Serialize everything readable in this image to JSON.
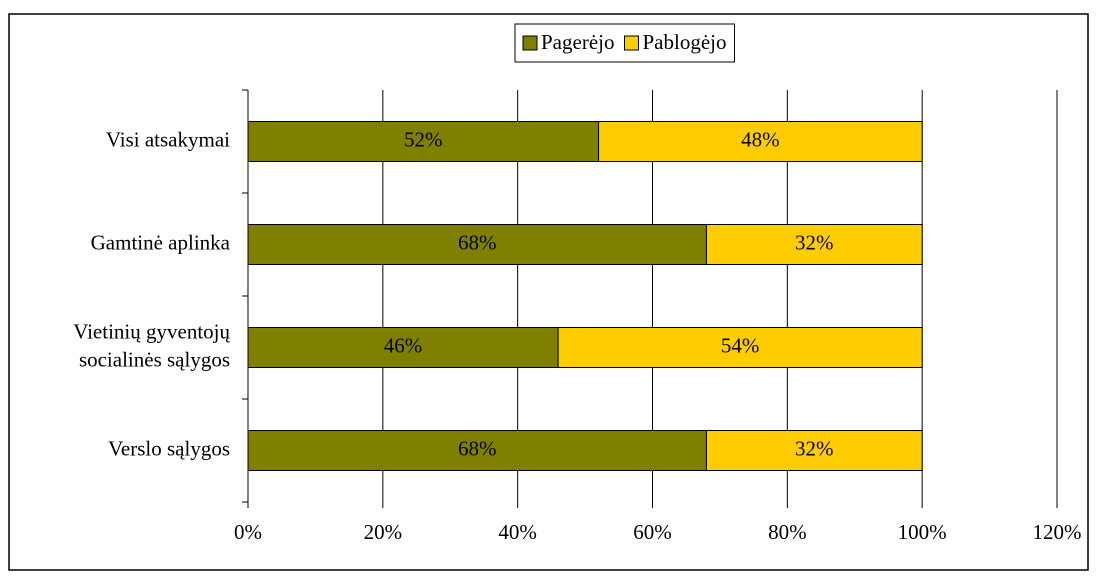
{
  "chart_data": {
    "type": "stacked_barh",
    "categories": [
      "Visi atsakymai",
      "Gamtinė aplinka",
      "Vietinių gyventojų\nsocialinės sąlygos",
      "Verslo sąlygos"
    ],
    "series": [
      {
        "name": "Pagerėjo",
        "color": "#808000",
        "values": [
          52,
          68,
          46,
          68
        ],
        "value_labels": [
          "52%",
          "68%",
          "46%",
          "68%"
        ]
      },
      {
        "name": "Pablogėjo",
        "color": "#ffcc00",
        "values": [
          48,
          32,
          54,
          32
        ],
        "value_labels": [
          "48%",
          "32%",
          "54%",
          "32%"
        ]
      }
    ],
    "xlim": [
      0,
      120
    ],
    "xticks": [
      {
        "value": 0,
        "label": "0%"
      },
      {
        "value": 20,
        "label": "20%"
      },
      {
        "value": 40,
        "label": "40%"
      },
      {
        "value": 60,
        "label": "60%"
      },
      {
        "value": 80,
        "label": "80%"
      },
      {
        "value": 100,
        "label": "100%"
      },
      {
        "value": 120,
        "label": "120%"
      }
    ],
    "grid": true,
    "legend": "top"
  }
}
